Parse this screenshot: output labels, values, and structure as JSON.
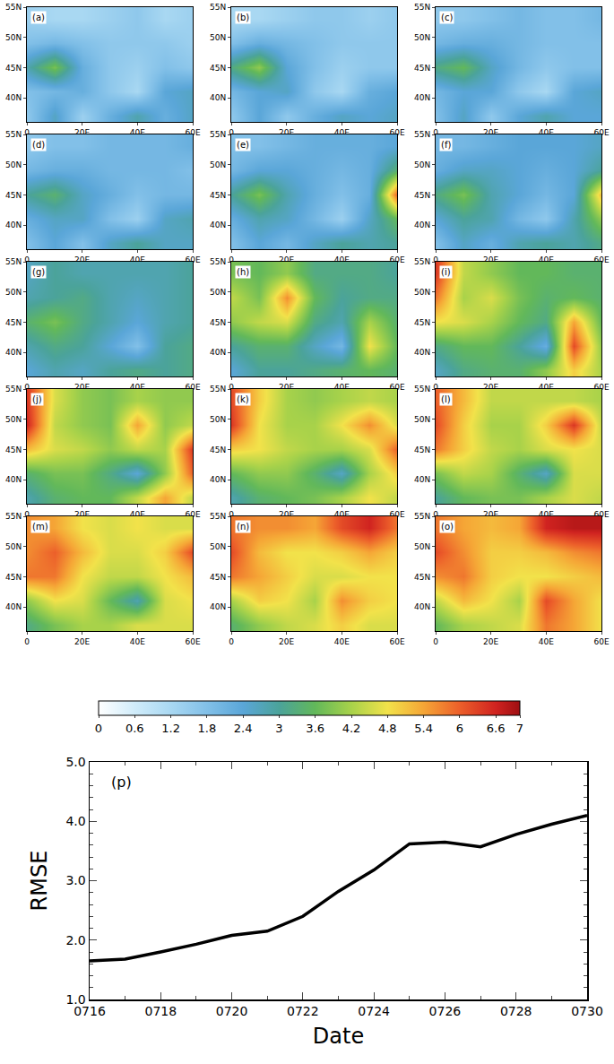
{
  "chart_data": [
    {
      "type": "heatmap",
      "x": [
        0,
        10,
        20,
        30,
        40,
        50,
        60
      ],
      "y": [
        37,
        41,
        45,
        49,
        53
      ],
      "xlim": [
        0,
        60
      ],
      "ylim": [
        36,
        55
      ],
      "xticks": [
        0,
        {
          "value": 20,
          "label": "20E"
        },
        {
          "value": 40,
          "label": "40E"
        },
        {
          "value": 60,
          "label": "60E"
        }
      ],
      "yticks": [
        {
          "value": 40,
          "label": "40N"
        },
        {
          "value": 45,
          "label": "45N"
        },
        {
          "value": 50,
          "label": "50N"
        },
        {
          "value": 55,
          "label": "55N"
        }
      ],
      "colorbar": {
        "range": [
          0,
          7
        ],
        "ticks": [
          0,
          0.6,
          1.2,
          1.8,
          2.4,
          3,
          3.6,
          4.2,
          4.8,
          5.4,
          6,
          6.6,
          7
        ]
      },
      "panels": [
        {
          "label": "(a)",
          "cells": [
            [
              1.6,
              2.6,
              1.4,
              2.2,
              2.8,
              2.2,
              2.6
            ],
            [
              1.8,
              2.0,
              2.2,
              1.6,
              1.2,
              2.4,
              2.6
            ],
            [
              2.8,
              3.8,
              2.2,
              1.6,
              1.4,
              1.8,
              1.6
            ],
            [
              1.8,
              2.0,
              1.8,
              1.6,
              1.6,
              1.6,
              1.4
            ],
            [
              1.4,
              1.2,
              1.2,
              1.4,
              1.6,
              1.2,
              1.4
            ]
          ]
        },
        {
          "label": "(b)",
          "cells": [
            [
              1.6,
              2.4,
              1.6,
              2.2,
              2.6,
              2.4,
              2.6
            ],
            [
              2.0,
              2.4,
              2.6,
              1.6,
              1.2,
              2.2,
              2.4
            ],
            [
              3.2,
              4.0,
              2.4,
              1.8,
              1.4,
              1.6,
              1.6
            ],
            [
              1.8,
              2.2,
              2.0,
              1.8,
              1.6,
              1.6,
              1.6
            ],
            [
              1.2,
              1.2,
              1.4,
              1.6,
              1.6,
              1.4,
              1.6
            ]
          ]
        },
        {
          "label": "(c)",
          "cells": [
            [
              1.8,
              2.6,
              1.6,
              2.4,
              2.8,
              2.4,
              2.4
            ],
            [
              2.0,
              2.4,
              2.4,
              1.6,
              1.2,
              2.4,
              2.6
            ],
            [
              3.2,
              3.6,
              2.6,
              2.0,
              1.6,
              1.8,
              1.8
            ],
            [
              2.0,
              2.2,
              2.2,
              2.0,
              1.8,
              1.8,
              1.8
            ],
            [
              1.6,
              1.6,
              1.8,
              2.0,
              1.8,
              1.8,
              2.0
            ]
          ]
        },
        {
          "label": "(d)",
          "cells": [
            [
              1.8,
              2.4,
              1.8,
              2.6,
              3.0,
              2.6,
              2.6
            ],
            [
              2.2,
              2.6,
              2.6,
              1.8,
              1.4,
              2.6,
              2.8
            ],
            [
              3.0,
              3.4,
              2.6,
              2.2,
              1.8,
              2.0,
              2.0
            ],
            [
              2.0,
              2.2,
              2.2,
              2.0,
              2.0,
              2.0,
              1.8
            ],
            [
              1.6,
              1.8,
              1.8,
              2.0,
              2.0,
              2.0,
              2.2
            ]
          ]
        },
        {
          "label": "(e)",
          "cells": [
            [
              1.8,
              2.4,
              2.0,
              2.6,
              3.0,
              2.8,
              3.0
            ],
            [
              2.2,
              2.8,
              2.6,
              2.0,
              1.4,
              2.6,
              3.6
            ],
            [
              3.0,
              3.8,
              2.8,
              2.2,
              1.8,
              2.2,
              6.0
            ],
            [
              2.0,
              2.4,
              2.4,
              2.2,
              2.0,
              2.2,
              3.4
            ],
            [
              1.8,
              1.8,
              2.0,
              2.2,
              2.2,
              2.2,
              2.4
            ]
          ]
        },
        {
          "label": "(f)",
          "cells": [
            [
              1.8,
              2.6,
              2.2,
              2.8,
              3.0,
              2.8,
              3.2
            ],
            [
              2.4,
              3.0,
              2.8,
              2.0,
              1.6,
              2.8,
              4.0
            ],
            [
              3.2,
              3.8,
              2.8,
              2.4,
              2.0,
              2.4,
              5.2
            ],
            [
              2.2,
              2.6,
              2.6,
              2.4,
              2.2,
              2.4,
              3.0
            ],
            [
              2.0,
              2.0,
              2.2,
              2.4,
              2.4,
              2.4,
              2.6
            ]
          ]
        },
        {
          "label": "(g)",
          "cells": [
            [
              2.4,
              2.8,
              2.6,
              3.0,
              3.2,
              3.0,
              3.2
            ],
            [
              2.8,
              3.2,
              3.0,
              2.4,
              1.8,
              3.0,
              3.2
            ],
            [
              3.4,
              3.8,
              3.2,
              2.8,
              2.4,
              2.8,
              3.0
            ],
            [
              2.8,
              3.0,
              3.2,
              2.8,
              2.6,
              2.8,
              3.0
            ],
            [
              2.6,
              3.0,
              2.8,
              2.8,
              2.8,
              2.8,
              3.0
            ]
          ]
        },
        {
          "label": "(h)",
          "cells": [
            [
              2.4,
              3.0,
              3.0,
              3.2,
              3.4,
              3.6,
              3.4
            ],
            [
              3.0,
              3.4,
              3.4,
              2.6,
              2.0,
              4.8,
              3.6
            ],
            [
              4.0,
              4.4,
              4.6,
              3.2,
              2.8,
              4.2,
              3.4
            ],
            [
              4.4,
              3.8,
              5.6,
              3.6,
              3.0,
              3.2,
              3.2
            ],
            [
              3.8,
              3.6,
              4.0,
              3.2,
              3.2,
              3.2,
              3.0
            ]
          ]
        },
        {
          "label": "(i)",
          "cells": [
            [
              2.6,
              3.2,
              3.4,
              3.4,
              4.0,
              5.0,
              4.2
            ],
            [
              3.2,
              3.6,
              3.6,
              3.0,
              2.2,
              6.2,
              4.0
            ],
            [
              4.8,
              4.6,
              4.2,
              3.6,
              3.2,
              5.4,
              3.6
            ],
            [
              5.8,
              4.2,
              4.6,
              3.8,
              3.4,
              3.6,
              3.4
            ],
            [
              6.4,
              4.4,
              4.0,
              3.6,
              3.6,
              3.4,
              3.4
            ]
          ]
        },
        {
          "label": "(j)",
          "cells": [
            [
              2.8,
              3.4,
              3.6,
              3.6,
              4.4,
              5.4,
              4.4
            ],
            [
              3.4,
              3.8,
              3.8,
              3.2,
              2.4,
              4.0,
              6.0
            ],
            [
              5.2,
              4.6,
              4.4,
              4.0,
              4.4,
              4.2,
              6.4
            ],
            [
              6.6,
              4.4,
              4.0,
              3.8,
              5.4,
              4.0,
              4.4
            ],
            [
              6.4,
              4.6,
              4.0,
              3.8,
              4.2,
              4.0,
              4.0
            ]
          ]
        },
        {
          "label": "(k)",
          "cells": [
            [
              2.8,
              3.4,
              3.6,
              3.8,
              4.2,
              4.8,
              4.4
            ],
            [
              3.6,
              4.0,
              4.0,
              3.4,
              2.6,
              4.2,
              5.0
            ],
            [
              5.0,
              4.8,
              4.4,
              4.2,
              4.2,
              4.6,
              6.0
            ],
            [
              6.4,
              4.8,
              4.2,
              4.2,
              4.8,
              5.6,
              4.6
            ],
            [
              6.2,
              5.0,
              4.2,
              4.0,
              4.2,
              4.4,
              4.2
            ]
          ]
        },
        {
          "label": "(l)",
          "cells": [
            [
              3.0,
              3.6,
              3.8,
              3.8,
              4.2,
              4.6,
              4.4
            ],
            [
              3.8,
              4.4,
              4.2,
              3.4,
              2.6,
              4.6,
              4.6
            ],
            [
              5.8,
              5.0,
              4.4,
              4.2,
              4.6,
              4.8,
              4.6
            ],
            [
              6.2,
              5.0,
              4.2,
              4.2,
              5.0,
              6.4,
              4.4
            ],
            [
              6.0,
              5.2,
              4.4,
              4.4,
              4.4,
              4.4,
              4.2
            ]
          ]
        },
        {
          "label": "(m)",
          "cells": [
            [
              3.2,
              3.8,
              4.2,
              4.2,
              4.6,
              4.6,
              4.6
            ],
            [
              4.0,
              4.8,
              4.6,
              3.6,
              2.8,
              4.6,
              4.8
            ],
            [
              5.8,
              5.8,
              4.8,
              4.4,
              4.4,
              4.8,
              5.2
            ],
            [
              5.6,
              6.0,
              5.2,
              4.6,
              4.6,
              5.0,
              6.2
            ],
            [
              5.6,
              5.4,
              4.8,
              4.6,
              4.8,
              4.6,
              4.6
            ]
          ]
        },
        {
          "label": "(n)",
          "cells": [
            [
              3.4,
              4.0,
              4.4,
              4.6,
              5.0,
              4.6,
              4.6
            ],
            [
              4.2,
              5.0,
              4.8,
              4.2,
              5.6,
              5.0,
              4.8
            ],
            [
              5.8,
              5.4,
              5.0,
              4.6,
              4.6,
              4.8,
              4.8
            ],
            [
              6.2,
              5.2,
              4.8,
              4.8,
              5.0,
              5.4,
              5.0
            ],
            [
              5.8,
              5.6,
              5.6,
              5.4,
              6.2,
              6.6,
              5.8
            ]
          ]
        },
        {
          "label": "(o)",
          "cells": [
            [
              3.6,
              4.2,
              4.4,
              4.6,
              5.8,
              5.4,
              4.8
            ],
            [
              4.4,
              5.2,
              4.8,
              4.2,
              6.2,
              5.4,
              4.8
            ],
            [
              5.6,
              5.8,
              5.0,
              4.8,
              4.8,
              5.0,
              5.2
            ],
            [
              6.2,
              5.6,
              5.0,
              5.0,
              5.2,
              5.6,
              5.8
            ],
            [
              5.8,
              5.4,
              5.2,
              5.4,
              6.6,
              6.8,
              6.8
            ]
          ]
        }
      ]
    },
    {
      "type": "line",
      "annotation": "(p)",
      "x_label": "Date",
      "y_label": "RMSE",
      "categories": [
        "0716",
        null,
        "0718",
        null,
        "0720",
        null,
        "0722",
        null,
        "0724",
        null,
        "0726",
        null,
        "0728",
        null,
        "0730"
      ],
      "series": [
        {
          "color": "#000000",
          "values": [
            1.65,
            1.68,
            1.8,
            1.93,
            2.08,
            2.15,
            2.4,
            2.82,
            3.18,
            3.62,
            3.65,
            3.57,
            3.78,
            3.95,
            4.1
          ]
        }
      ],
      "ylim": [
        1,
        5
      ],
      "yticks": [
        {
          "value": 1,
          "label": "1.0"
        },
        {
          "value": 2,
          "label": "2.0"
        },
        {
          "value": 3,
          "label": "3.0"
        },
        {
          "value": 4,
          "label": "4.0"
        },
        {
          "value": 5,
          "label": "5.0"
        }
      ]
    }
  ]
}
